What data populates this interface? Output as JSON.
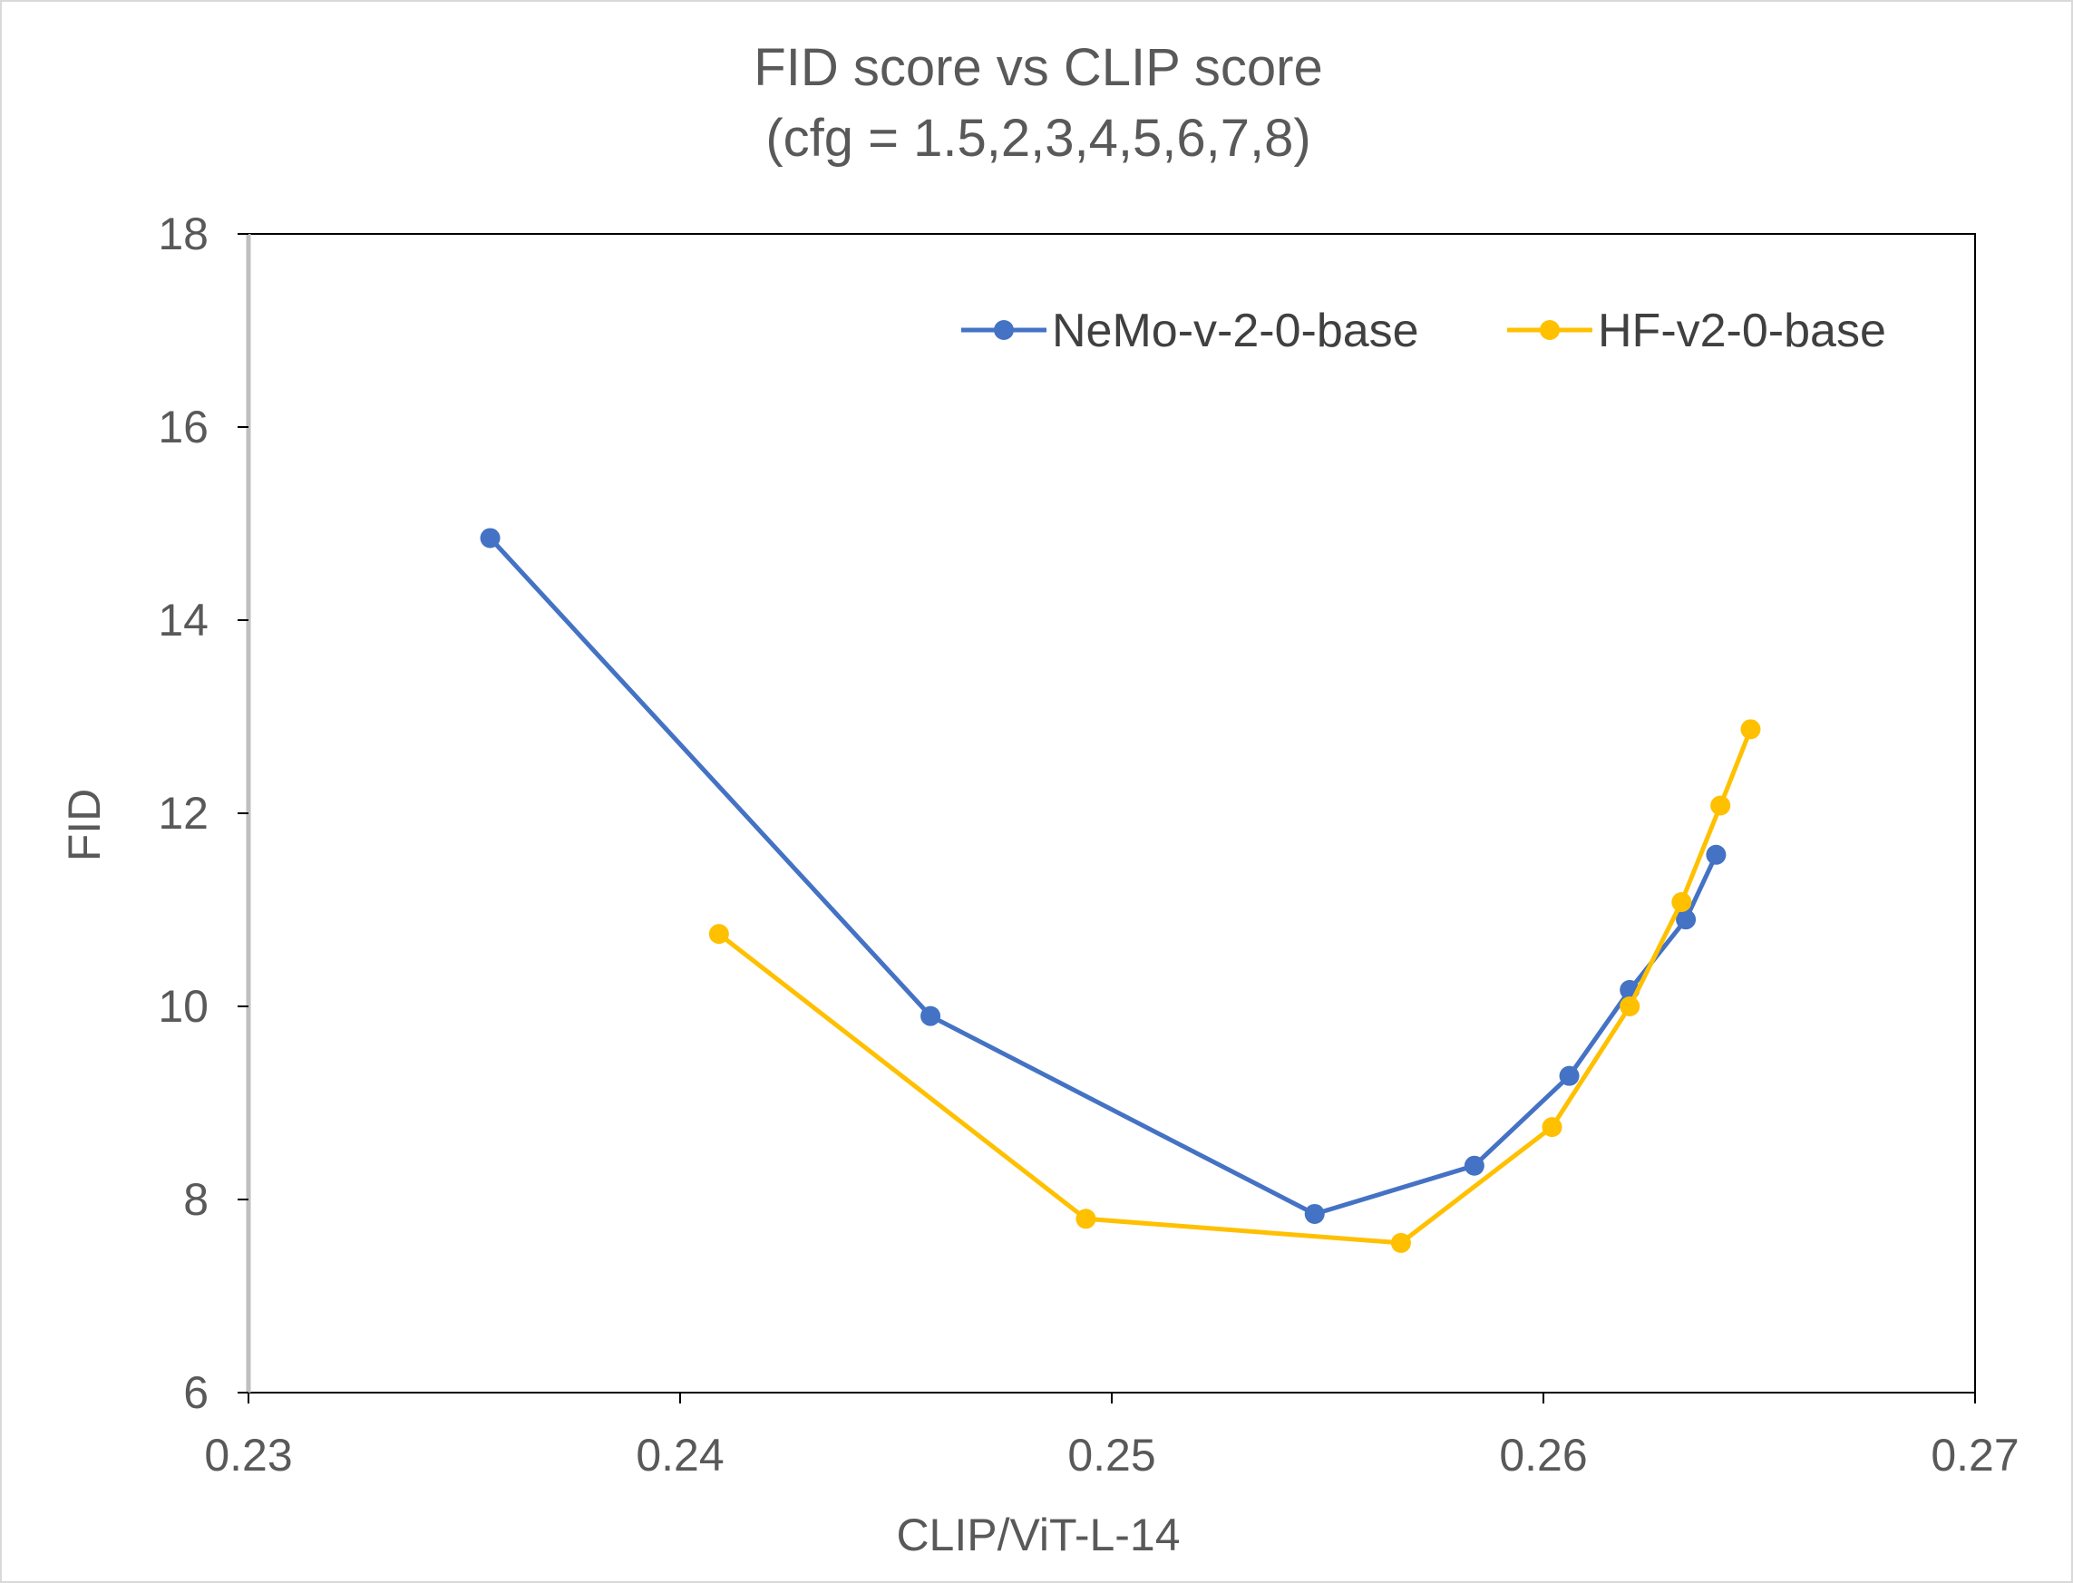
{
  "chart_data": {
    "type": "scatter",
    "title_lines": [
      "FID score vs CLIP score",
      "(cfg = 1.5,2,3,4,5,6,7,8)"
    ],
    "xlabel": "CLIP/ViT-L-14",
    "ylabel": "FID",
    "xlim": [
      0.23,
      0.27
    ],
    "ylim": [
      6,
      18
    ],
    "x_ticks": [
      0.23,
      0.24,
      0.25,
      0.26,
      0.27
    ],
    "x_tick_labels": [
      "0.23",
      "0.24",
      "0.25",
      "0.26",
      "0.27"
    ],
    "y_ticks": [
      6,
      8,
      10,
      12,
      14,
      16,
      18
    ],
    "y_tick_labels": [
      "6",
      "8",
      "10",
      "12",
      "14",
      "16",
      "18"
    ],
    "grid": false,
    "legend_position": "top-right",
    "series": [
      {
        "name": "NeMo-v-2-0-base",
        "color": "#4472c4",
        "x": [
          0.2356,
          0.2458,
          0.2547,
          0.2584,
          0.2606,
          0.262,
          0.2633,
          0.264
        ],
        "y": [
          14.85,
          9.9,
          7.85,
          8.35,
          9.28,
          10.17,
          10.9,
          11.57
        ]
      },
      {
        "name": "HF-v2-0-base",
        "color": "#ffc000",
        "x": [
          0.2409,
          0.2494,
          0.2567,
          0.2602,
          0.262,
          0.2632,
          0.2641,
          0.2648
        ],
        "y": [
          10.75,
          7.8,
          7.55,
          8.75,
          10.0,
          11.08,
          12.08,
          12.87
        ]
      }
    ]
  }
}
